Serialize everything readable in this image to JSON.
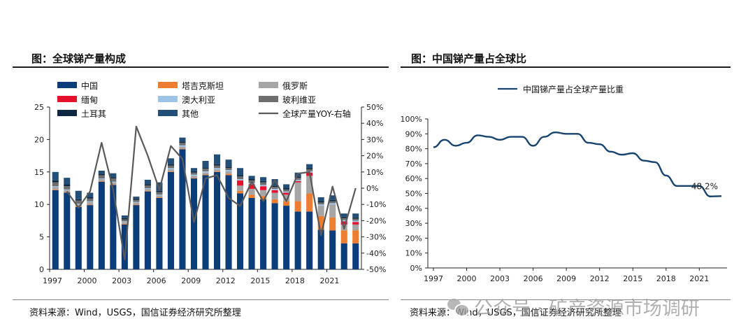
{
  "left": {
    "title": "图：全球锑产量构成",
    "source": "资料来源：Wind，USGS，国信证券经济研究所整理"
  },
  "right": {
    "title": "图：中国锑产量占全球比",
    "source": "资料来源：Wind，USGS，国信证券经济研究所整理"
  },
  "watermark": {
    "text": "公众号 · 矿产资源市场调研",
    "icon": "wechat-icon"
  },
  "colors": {
    "china": "#0b3d7a",
    "tajikistan": "#ed7d31",
    "russia": "#a5a5a5",
    "myanmar": "#e8112d",
    "australia": "#9dc3e6",
    "bolivia": "#6e6e6e",
    "turkey": "#0e2841",
    "others": "#234e77",
    "yoy": "#595959",
    "share": "#17436f"
  },
  "chart_data": [
    {
      "type": "bar",
      "stacked": true,
      "categories": [
        "1997",
        "1998",
        "1999",
        "2000",
        "2001",
        "2002",
        "2003",
        "2004",
        "2005",
        "2006",
        "2007",
        "2008",
        "2009",
        "2010",
        "2011",
        "2012",
        "2013",
        "2014",
        "2015",
        "2016",
        "2017",
        "2018",
        "2019",
        "2020",
        "2021",
        "2022",
        "2023"
      ],
      "x_tick_labels": [
        "1997",
        "2000",
        "2003",
        "2006",
        "2009",
        "2012",
        "2015",
        "2018",
        "2021"
      ],
      "ylim": [
        0,
        25
      ],
      "y_ticks": [
        "0",
        "5",
        "10",
        "15",
        "20",
        "25"
      ],
      "y2lim": [
        -50,
        50
      ],
      "y2_ticks": [
        "-50%",
        "-40%",
        "-30%",
        "-20%",
        "-10%",
        "0%",
        "10%",
        "20%",
        "30%",
        "40%",
        "50%"
      ],
      "legend": [
        "中国",
        "塔吉克斯坦",
        "俄罗斯",
        "缅甸",
        "澳大利亚",
        "玻利维亚",
        "土耳其",
        "其他",
        "全球产量YOY-右轴"
      ],
      "series": [
        {
          "name": "中国",
          "key": "china",
          "values": [
            12.2,
            11.8,
            9.6,
            9.9,
            13.5,
            13.0,
            6.9,
            9.9,
            12.0,
            11.0,
            15.0,
            18.5,
            14.0,
            14.5,
            15.0,
            14.5,
            11.7,
            11.0,
            10.8,
            10.2,
            9.8,
            8.9,
            8.9,
            6.1,
            6.0,
            4.0,
            4.0
          ]
        },
        {
          "name": "塔吉克斯坦",
          "key": "tajikistan",
          "values": [
            0.1,
            0.1,
            0.1,
            0.1,
            0.1,
            0.1,
            0.1,
            0.1,
            0.1,
            0.1,
            0.1,
            0.1,
            0.1,
            0.1,
            0.1,
            0.2,
            0.4,
            0.5,
            0.5,
            0.6,
            0.7,
            1.6,
            2.8,
            2.1,
            2.0,
            2.0,
            2.0
          ]
        },
        {
          "name": "俄罗斯",
          "key": "russia",
          "values": [
            0.4,
            0.3,
            0.3,
            0.4,
            0.3,
            0.3,
            0.3,
            0.3,
            0.3,
            0.3,
            0.3,
            0.3,
            0.3,
            0.3,
            0.3,
            0.4,
            0.8,
            0.9,
            0.9,
            1.0,
            1.0,
            2.9,
            2.7,
            1.6,
            2.0,
            0.9,
            0.9
          ]
        },
        {
          "name": "缅甸",
          "key": "myanmar",
          "values": [
            0,
            0,
            0,
            0,
            0,
            0,
            0,
            0,
            0,
            0,
            0,
            0,
            0,
            0,
            0,
            0,
            0.8,
            0.7,
            0.6,
            0.4,
            0.3,
            0.2,
            0.5,
            0,
            0,
            0.5,
            0.4
          ]
        },
        {
          "name": "澳大利亚",
          "key": "australia",
          "values": [
            0.1,
            0.1,
            0.1,
            0.1,
            0.1,
            0.1,
            0.1,
            0.1,
            0.1,
            0.1,
            0.2,
            0.2,
            0.2,
            0.2,
            0.2,
            0.2,
            0.2,
            0.2,
            0.2,
            0.2,
            0.2,
            0.2,
            0.2,
            0.2,
            0.2,
            0.2,
            0.2
          ]
        },
        {
          "name": "玻利维亚",
          "key": "bolivia",
          "values": [
            0.6,
            0.5,
            0.5,
            0.4,
            0.5,
            0.5,
            0.3,
            0.3,
            0.4,
            0.4,
            0.4,
            0.4,
            0.3,
            0.4,
            0.4,
            0.3,
            0.4,
            0.4,
            0.4,
            0.3,
            0.3,
            0.3,
            0.3,
            0.3,
            0.3,
            0.3,
            0.3
          ]
        },
        {
          "name": "土耳其",
          "key": "turkey",
          "values": [
            0.3,
            0.3,
            0.2,
            0.2,
            0.2,
            0.2,
            0.2,
            0.2,
            0.2,
            0.2,
            0.2,
            0.2,
            0.2,
            0.2,
            0.2,
            0.2,
            0.2,
            0.2,
            0.2,
            0.2,
            0.2,
            0.2,
            0.2,
            0.2,
            0.2,
            0.2,
            0.2
          ]
        },
        {
          "name": "其他",
          "key": "others",
          "values": [
            1.3,
            1.0,
            1.3,
            0.7,
            0.5,
            0.6,
            0.4,
            0.3,
            0.7,
            1.3,
            0.9,
            0.6,
            0.5,
            1.0,
            1.5,
            1.1,
            1.1,
            0.5,
            0.6,
            1.0,
            0.6,
            0.6,
            0.6,
            0.6,
            0.7,
            0.5,
            0.6
          ]
        }
      ],
      "line_series": {
        "name": "全球产量YOY-右轴",
        "key": "yoy",
        "axis": "right",
        "values": [
          null,
          -2,
          -12,
          -2,
          28,
          -1,
          -44,
          38,
          20,
          -1,
          26,
          18,
          -21,
          6,
          8,
          -6,
          -11,
          4,
          -8,
          5,
          -8,
          9,
          10,
          -29,
          1,
          -25,
          0
        ]
      }
    },
    {
      "type": "line",
      "x_tick_labels": [
        "1997",
        "2000",
        "2003",
        "2006",
        "2009",
        "2012",
        "2015",
        "2018",
        "2021"
      ],
      "x": [
        1997,
        1998,
        1999,
        2000,
        2001,
        2002,
        2003,
        2004,
        2005,
        2006,
        2007,
        2008,
        2009,
        2010,
        2011,
        2012,
        2013,
        2014,
        2015,
        2016,
        2017,
        2018,
        2019,
        2020,
        2021,
        2022,
        2023
      ],
      "ylim": [
        0,
        100
      ],
      "y_ticks": [
        "0%",
        "10%",
        "20%",
        "30%",
        "40%",
        "50%",
        "60%",
        "70%",
        "80%",
        "90%",
        "100%"
      ],
      "series": [
        {
          "name": "中国锑产量占全球产量比重",
          "key": "share",
          "values": [
            81,
            86,
            82,
            84,
            89,
            88,
            86,
            88,
            88,
            82,
            88,
            91,
            90,
            90,
            84,
            83,
            78,
            76,
            77,
            72,
            71,
            62,
            55,
            55,
            55,
            48,
            48.2
          ]
        }
      ],
      "annotation": {
        "label": "48.2%"
      }
    }
  ]
}
